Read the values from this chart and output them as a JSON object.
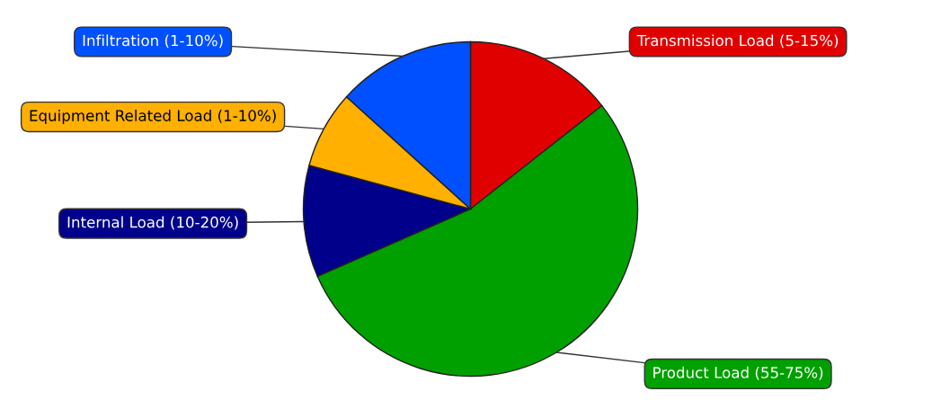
{
  "chart_data": {
    "type": "pie",
    "categories": [
      "Transmission Load (5-15%)",
      "Product Load (55-75%)",
      "Internal Load (10-20%)",
      "Equipment Related Load (1-10%)",
      "Infiltration (1-10%)"
    ],
    "values": [
      14.4,
      54.0,
      10.8,
      7.5,
      13.3
    ],
    "colors": [
      "#e00000",
      "#00a000",
      "#00008b",
      "#ffb000",
      "#0050ff"
    ],
    "legend": false
  }
}
